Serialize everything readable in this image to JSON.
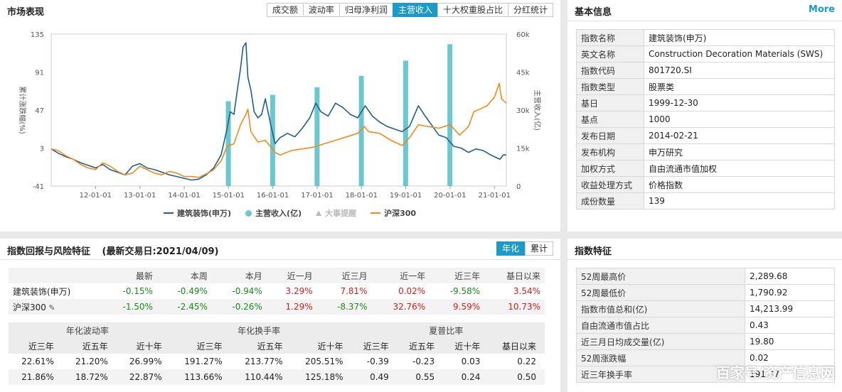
{
  "market": {
    "title": "市场表现",
    "tabs": [
      "成交额",
      "波动率",
      "归母净利润",
      "主营收入",
      "十大权重股占比",
      "分红统计"
    ],
    "active_tab": 3,
    "legend": [
      {
        "label": "建筑装饰(申万)",
        "color": "#1f5f8b",
        "icon": "line-icon"
      },
      {
        "label": "主营收入(亿)",
        "color": "#6cc8d0",
        "icon": "dot-icon"
      },
      {
        "label": "大事提醒",
        "color": "#bbbbbb",
        "icon": "triangle-icon"
      },
      {
        "label": "沪深300",
        "color": "#f08a1c",
        "icon": "line-icon"
      }
    ]
  },
  "chart_data": {
    "type": "line",
    "xlabel": "",
    "ylabel": "累计涨跌幅(%)",
    "y2label": "主营收入(亿)",
    "x_ticks": [
      "12-01-01",
      "13-01-01",
      "14-01-01",
      "15-01-01",
      "16-01-01",
      "17-01-01",
      "18-01-01",
      "19-01-01",
      "20-01-01",
      "21-01-01"
    ],
    "x_range": [
      "2011-01-01",
      "2021-04-09"
    ],
    "ylim": [
      -41,
      135
    ],
    "y_ticks": [
      -41,
      3,
      47,
      91,
      135
    ],
    "y2lim": [
      0,
      60000
    ],
    "y2_ticks": [
      "0",
      "15k",
      "30k",
      "45k",
      "60k"
    ],
    "bars": {
      "name": "主营收入(亿)",
      "color": "#6cc8d0",
      "x": [
        "2014-12-31",
        "2015-12-31",
        "2016-12-31",
        "2017-12-31",
        "2018-12-31",
        "2019-12-31"
      ],
      "values": [
        33500,
        36000,
        39000,
        43500,
        49500,
        56000
      ]
    },
    "series": [
      {
        "name": "建筑装饰(申万)",
        "color": "#1f5f8b",
        "x": [
          "2011-01-01",
          "2011-03-01",
          "2011-05-01",
          "2011-07-01",
          "2011-09-01",
          "2011-11-01",
          "2012-01-01",
          "2012-03-01",
          "2012-05-01",
          "2012-07-01",
          "2012-09-01",
          "2012-11-01",
          "2013-01-01",
          "2013-03-01",
          "2013-05-01",
          "2013-07-01",
          "2013-09-01",
          "2013-11-01",
          "2014-01-01",
          "2014-03-01",
          "2014-05-01",
          "2014-07-01",
          "2014-09-01",
          "2014-11-01",
          "2014-12-20",
          "2015-01-15",
          "2015-02-15",
          "2015-03-15",
          "2015-04-10",
          "2015-05-01",
          "2015-05-25",
          "2015-06-10",
          "2015-07-05",
          "2015-08-01",
          "2015-09-01",
          "2015-10-01",
          "2015-11-01",
          "2015-12-15",
          "2016-01-20",
          "2016-03-01",
          "2016-05-01",
          "2016-07-01",
          "2016-09-01",
          "2016-11-01",
          "2016-12-20",
          "2017-02-01",
          "2017-04-01",
          "2017-06-01",
          "2017-08-01",
          "2017-10-01",
          "2017-12-01",
          "2018-02-01",
          "2018-04-01",
          "2018-06-01",
          "2018-08-01",
          "2018-10-01",
          "2018-12-01",
          "2019-02-01",
          "2019-04-15",
          "2019-06-01",
          "2019-08-01",
          "2019-10-01",
          "2019-12-01",
          "2020-02-01",
          "2020-04-01",
          "2020-06-01",
          "2020-08-01",
          "2020-10-01",
          "2020-12-01",
          "2021-01-15",
          "2021-02-15",
          "2021-03-15",
          "2021-04-09"
        ],
        "values": [
          2,
          -3,
          -7,
          -10,
          -14,
          -17,
          -20,
          -16,
          -22,
          -25,
          -28,
          -18,
          -15,
          -20,
          -22,
          -25,
          -28,
          -30,
          -32,
          -34,
          -33,
          -28,
          -20,
          -5,
          25,
          45,
          42,
          70,
          95,
          120,
          125,
          85,
          70,
          45,
          38,
          42,
          60,
          30,
          8,
          15,
          20,
          16,
          26,
          38,
          55,
          45,
          40,
          55,
          50,
          42,
          38,
          52,
          40,
          33,
          28,
          25,
          22,
          28,
          52,
          42,
          30,
          18,
          15,
          5,
          3,
          -2,
          2,
          0,
          -5,
          -8,
          -10,
          -5,
          -5
        ]
      },
      {
        "name": "沪深300",
        "color": "#f08a1c",
        "x": [
          "2011-01-01",
          "2011-03-01",
          "2011-05-01",
          "2011-07-01",
          "2011-09-01",
          "2011-11-01",
          "2012-01-01",
          "2012-03-01",
          "2012-05-01",
          "2012-07-01",
          "2012-09-01",
          "2012-11-01",
          "2013-01-01",
          "2013-03-01",
          "2013-05-01",
          "2013-07-01",
          "2013-09-01",
          "2013-11-01",
          "2014-01-01",
          "2014-03-01",
          "2014-05-01",
          "2014-07-01",
          "2014-09-01",
          "2014-11-01",
          "2014-12-20",
          "2015-02-15",
          "2015-04-10",
          "2015-05-25",
          "2015-06-10",
          "2015-07-05",
          "2015-09-01",
          "2015-11-01",
          "2016-01-20",
          "2016-03-01",
          "2016-06-01",
          "2016-09-01",
          "2016-12-01",
          "2017-03-01",
          "2017-06-01",
          "2017-09-01",
          "2017-12-01",
          "2018-01-25",
          "2018-03-01",
          "2018-06-01",
          "2018-09-01",
          "2018-12-01",
          "2019-02-01",
          "2019-04-15",
          "2019-07-01",
          "2019-10-01",
          "2020-01-01",
          "2020-03-20",
          "2020-06-01",
          "2020-07-15",
          "2020-09-01",
          "2020-11-01",
          "2021-01-01",
          "2021-02-10",
          "2021-03-01",
          "2021-04-09"
        ],
        "values": [
          2,
          0,
          -6,
          -10,
          -16,
          -20,
          -22,
          -14,
          -18,
          -24,
          -28,
          -26,
          -18,
          -22,
          -26,
          -28,
          -24,
          -26,
          -30,
          -30,
          -31,
          -27,
          -22,
          -12,
          5,
          8,
          30,
          42,
          48,
          22,
          10,
          12,
          -2,
          -5,
          0,
          2,
          4,
          8,
          12,
          16,
          20,
          28,
          22,
          20,
          12,
          6,
          15,
          30,
          28,
          26,
          30,
          18,
          28,
          45,
          48,
          52,
          62,
          78,
          60,
          55
        ]
      }
    ],
    "grid": false,
    "legend_position": "bottom"
  },
  "basic": {
    "title": "基本信息",
    "more": "More",
    "rows": [
      {
        "k": "指数名称",
        "v": "建筑装饰(申万)"
      },
      {
        "k": "英文名称",
        "v": "Construction Decoration Materials (SWS)"
      },
      {
        "k": "指数代码",
        "v": "801720.SI"
      },
      {
        "k": "指数类型",
        "v": "股票类"
      },
      {
        "k": "基日",
        "v": "1999-12-30"
      },
      {
        "k": "基点",
        "v": "1000"
      },
      {
        "k": "发布日期",
        "v": "2014-02-21"
      },
      {
        "k": "发布机构",
        "v": "申万研究"
      },
      {
        "k": "加权方式",
        "v": "自由流通市值加权"
      },
      {
        "k": "收益处理方式",
        "v": "价格指数"
      },
      {
        "k": "成份数量",
        "v": "139"
      }
    ]
  },
  "returns": {
    "title": "指数回报与风险特征",
    "subtitle": "(最新交易日:2021/04/09)",
    "buttons": [
      "年化",
      "累计"
    ],
    "headers": [
      "",
      "最新",
      "本周",
      "本月",
      "近一月",
      "近三月",
      "近一年",
      "近三年",
      "基日以来"
    ],
    "rows": [
      {
        "name": "建筑装饰(申万)",
        "values": [
          "-0.15%",
          "-0.49%",
          "-0.94%",
          "3.29%",
          "7.81%",
          "0.02%",
          "-9.58%",
          "3.54%"
        ]
      },
      {
        "name": "沪深300",
        "values": [
          "-1.50%",
          "-2.45%",
          "-0.26%",
          "1.29%",
          "-8.37%",
          "32.76%",
          "9.59%",
          "10.73%"
        ]
      }
    ],
    "group_headers": [
      "年化波动率",
      "年化换手率",
      "夏普比率"
    ],
    "sub_headers": [
      "近三年",
      "近五年",
      "近十年",
      "近三年",
      "近五年",
      "近十年",
      "近三年",
      "近五年",
      "近十年",
      "基日以来"
    ],
    "metric_rows": [
      [
        "22.61%",
        "21.20%",
        "26.99%",
        "191.27%",
        "213.77%",
        "205.51%",
        "-0.39",
        "-0.23",
        "0.03",
        "0.22"
      ],
      [
        "21.86%",
        "18.72%",
        "22.87%",
        "113.66%",
        "110.44%",
        "125.18%",
        "0.49",
        "0.55",
        "0.24",
        "0.50"
      ]
    ]
  },
  "features": {
    "title": "指数特征",
    "rows": [
      {
        "k": "52周最高价",
        "v": "2,289.68"
      },
      {
        "k": "52周最低价",
        "v": "1,790.92"
      },
      {
        "k": "指数市值总和(亿)",
        "v": "14,213.99"
      },
      {
        "k": "自由流通市值占比",
        "v": "0.43"
      },
      {
        "k": "近三月日均成交量(亿)",
        "v": "19.80"
      },
      {
        "k": "52周涨跌幅",
        "v": "0.02"
      },
      {
        "k": "近三年换手率",
        "v": "191.27"
      }
    ]
  },
  "watermark": "百家号/资产信息网"
}
